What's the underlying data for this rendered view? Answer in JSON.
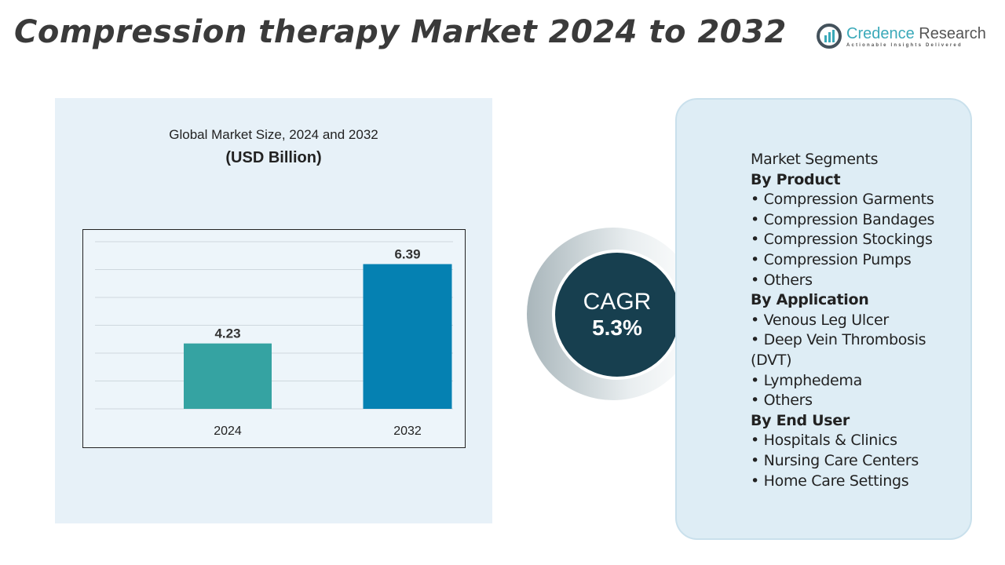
{
  "title": "Compression therapy Market 2024 to 2032",
  "logo": {
    "name_part1": "Credence",
    "name_part2": " Research",
    "tagline": "Actionable Insights Delivered",
    "color": "#3aa9b9"
  },
  "chart_data": {
    "type": "bar",
    "title": "Global Market Size, 2024 and 2032",
    "subtitle": "(USD Billion)",
    "categories": [
      "2024",
      "2032"
    ],
    "values": [
      4.23,
      6.39
    ],
    "data_labels": [
      "4.23",
      "6.39"
    ],
    "colors": [
      "#35a3a2",
      "#0581b2"
    ],
    "ylim": [
      2.45,
      7.0
    ],
    "grid": true
  },
  "cagr": {
    "label": "CAGR",
    "value": "5.3%"
  },
  "segments": {
    "heading": "Market Segments",
    "groups": [
      {
        "title": "By Product",
        "items": [
          "Compression Garments",
          "Compression Bandages",
          "Compression Stockings",
          "Compression Pumps",
          "Others"
        ]
      },
      {
        "title": "By Application",
        "items": [
          "Venous Leg Ulcer",
          "Deep Vein Thrombosis (DVT)",
          "Lymphedema",
          "Others"
        ]
      },
      {
        "title": "By End User",
        "items": [
          "Hospitals & Clinics",
          "Nursing Care Centers",
          "Home Care Settings"
        ]
      }
    ]
  }
}
